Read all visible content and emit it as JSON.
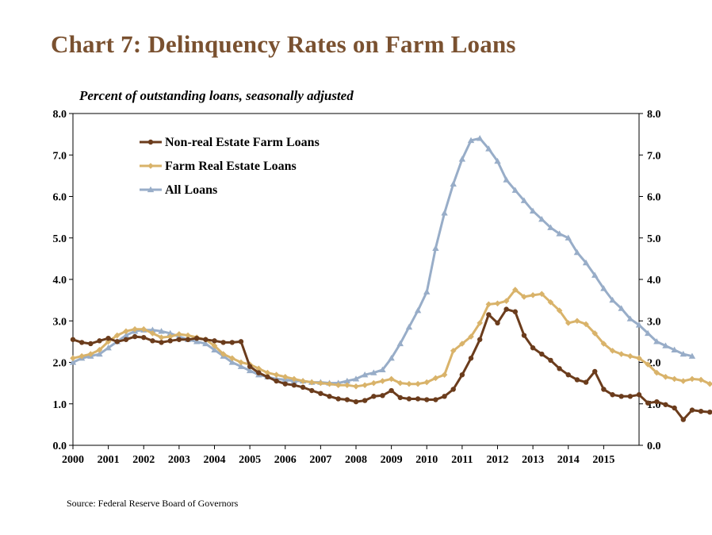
{
  "title": "Chart 7: Delinquency  Rates on Farm Loans",
  "subtitle": "Percent of outstanding loans, seasonally adjusted",
  "source": "Source: Federal Reserve Board of  Governors",
  "chart_data": {
    "type": "line",
    "x_start": 2000.0,
    "x_step": 0.25,
    "xlim": [
      2000,
      2016
    ],
    "ylim": [
      0,
      8
    ],
    "y_ticks": [
      "0.0",
      "1.0",
      "2.0",
      "3.0",
      "4.0",
      "5.0",
      "6.0",
      "7.0",
      "8.0"
    ],
    "x_ticks": [
      "2000",
      "2001",
      "2002",
      "2003",
      "2004",
      "2005",
      "2006",
      "2007",
      "2008",
      "2009",
      "2010",
      "2011",
      "2012",
      "2013",
      "2014",
      "2015"
    ],
    "grid": false,
    "legend_position": "top-left",
    "series": [
      {
        "name": "Non-real Estate Farm Loans",
        "color": "#6b3c1c",
        "marker": "circle",
        "values": [
          2.55,
          2.48,
          2.45,
          2.52,
          2.58,
          2.5,
          2.55,
          2.62,
          2.6,
          2.52,
          2.48,
          2.52,
          2.55,
          2.55,
          2.58,
          2.55,
          2.52,
          2.48,
          2.48,
          2.5,
          1.9,
          1.75,
          1.65,
          1.55,
          1.48,
          1.45,
          1.4,
          1.32,
          1.25,
          1.18,
          1.12,
          1.1,
          1.05,
          1.08,
          1.18,
          1.2,
          1.32,
          1.15,
          1.12,
          1.12,
          1.1,
          1.1,
          1.18,
          1.35,
          1.7,
          2.1,
          2.55,
          3.15,
          2.95,
          3.28,
          3.22,
          2.65,
          2.35,
          2.2,
          2.05,
          1.85,
          1.7,
          1.58,
          1.52,
          1.78,
          1.35,
          1.22,
          1.18,
          1.18,
          1.22,
          1.02,
          1.05,
          0.98,
          0.9,
          0.62,
          0.85,
          0.82,
          0.8,
          0.85
        ]
      },
      {
        "name": "Farm Real Estate Loans",
        "color": "#d9b36a",
        "marker": "diamond",
        "values": [
          2.1,
          2.15,
          2.2,
          2.3,
          2.5,
          2.65,
          2.75,
          2.8,
          2.8,
          2.7,
          2.6,
          2.62,
          2.68,
          2.65,
          2.6,
          2.55,
          2.4,
          2.2,
          2.1,
          2.0,
          1.95,
          1.85,
          1.75,
          1.7,
          1.65,
          1.6,
          1.55,
          1.52,
          1.5,
          1.48,
          1.45,
          1.45,
          1.42,
          1.45,
          1.5,
          1.55,
          1.6,
          1.5,
          1.48,
          1.48,
          1.52,
          1.62,
          1.7,
          2.28,
          2.45,
          2.62,
          2.95,
          3.4,
          3.42,
          3.48,
          3.75,
          3.58,
          3.62,
          3.65,
          3.45,
          3.25,
          2.95,
          3.0,
          2.92,
          2.7,
          2.45,
          2.28,
          2.2,
          2.15,
          2.1,
          1.95,
          1.75,
          1.65,
          1.6,
          1.55,
          1.6,
          1.58,
          1.48,
          1.5
        ]
      },
      {
        "name": "All Loans",
        "color": "#98adc8",
        "marker": "triangle",
        "values": [
          2.0,
          2.1,
          2.15,
          2.2,
          2.35,
          2.5,
          2.65,
          2.75,
          2.78,
          2.78,
          2.75,
          2.7,
          2.62,
          2.55,
          2.5,
          2.45,
          2.3,
          2.15,
          2.0,
          1.9,
          1.8,
          1.7,
          1.65,
          1.6,
          1.58,
          1.55,
          1.55,
          1.52,
          1.52,
          1.5,
          1.5,
          1.55,
          1.6,
          1.7,
          1.75,
          1.82,
          2.1,
          2.45,
          2.85,
          3.25,
          3.7,
          4.75,
          5.6,
          6.3,
          6.9,
          7.35,
          7.4,
          7.15,
          6.85,
          6.4,
          6.15,
          5.9,
          5.65,
          5.45,
          5.25,
          5.1,
          5.0,
          4.65,
          4.4,
          4.1,
          3.78,
          3.5,
          3.3,
          3.05,
          2.9,
          2.7,
          2.5,
          2.4,
          2.3,
          2.2,
          2.15
        ]
      }
    ]
  }
}
